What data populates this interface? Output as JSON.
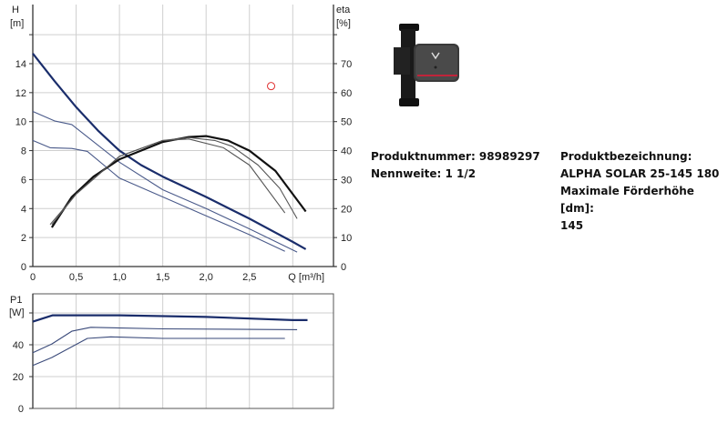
{
  "chart_data": [
    {
      "type": "line",
      "xlabel": "Q [m³/h]",
      "ylabel": "H\n[m]",
      "y2label": "eta\n[%]",
      "y_label_lines": [
        "H",
        "[m]"
      ],
      "y2_label_lines": [
        "eta",
        "[%]"
      ],
      "xlim": [
        0,
        3.47
      ],
      "ylim": [
        0,
        16
      ],
      "y2lim": [
        0,
        80
      ],
      "x_ticks": [
        0,
        0.5,
        1.0,
        1.5,
        2.0,
        2.5
      ],
      "x_tick_labels": [
        "0",
        "0,5",
        "1,0",
        "1,5",
        "2,0",
        "2,5"
      ],
      "y_ticks": [
        0,
        2,
        4,
        6,
        8,
        10,
        12,
        14
      ],
      "y2_ticks": [
        0,
        10,
        20,
        30,
        40,
        50,
        60,
        70
      ],
      "grid": true,
      "series": [
        {
          "axis": "H",
          "level": "max",
          "color": "#1a2d6b",
          "points": [
            [
              0,
              14.7
            ],
            [
              0.25,
              12.8
            ],
            [
              0.5,
              11.0
            ],
            [
              0.75,
              9.4
            ],
            [
              1.0,
              8.0
            ],
            [
              1.25,
              7.0
            ],
            [
              1.5,
              6.2
            ],
            [
              2.0,
              4.8
            ],
            [
              2.5,
              3.3
            ],
            [
              3.0,
              1.7
            ],
            [
              3.15,
              1.2
            ]
          ]
        },
        {
          "axis": "H",
          "level": "mid",
          "color": "#4a5a8a",
          "points": [
            [
              0,
              10.7
            ],
            [
              0.25,
              10.05
            ],
            [
              0.45,
              9.8
            ],
            [
              1.0,
              7.2
            ],
            [
              1.5,
              5.3
            ],
            [
              2.0,
              4.0
            ],
            [
              2.5,
              2.6
            ],
            [
              3.05,
              1.0
            ]
          ]
        },
        {
          "axis": "H",
          "level": "min",
          "color": "#4a5a8a",
          "points": [
            [
              0,
              8.7
            ],
            [
              0.2,
              8.2
            ],
            [
              0.45,
              8.15
            ],
            [
              0.63,
              7.95
            ],
            [
              1.0,
              6.1
            ],
            [
              1.5,
              4.8
            ],
            [
              2.0,
              3.5
            ],
            [
              2.5,
              2.2
            ],
            [
              2.91,
              1.05
            ]
          ]
        },
        {
          "axis": "eta",
          "level": "max",
          "color": "#111111",
          "points": [
            [
              0.22,
              13.5
            ],
            [
              0.45,
              24
            ],
            [
              0.7,
              31
            ],
            [
              1.0,
              37
            ],
            [
              1.5,
              43
            ],
            [
              1.8,
              44.7
            ],
            [
              2.0,
              45
            ],
            [
              2.25,
              43.5
            ],
            [
              2.5,
              40
            ],
            [
              2.8,
              33
            ],
            [
              3.15,
              19
            ]
          ]
        },
        {
          "axis": "eta",
          "level": "mid",
          "color": "#555555",
          "points": [
            [
              0.22,
              14.5
            ],
            [
              0.5,
              25
            ],
            [
              1.0,
              38
            ],
            [
              1.5,
              43.5
            ],
            [
              1.8,
              44.5
            ],
            [
              2.1,
              43.5
            ],
            [
              2.3,
              41.5
            ],
            [
              2.6,
              35
            ],
            [
              2.85,
              27
            ],
            [
              3.05,
              16.5
            ]
          ]
        },
        {
          "axis": "eta",
          "level": "min",
          "color": "#555555",
          "points": [
            [
              0.2,
              14.5
            ],
            [
              0.5,
              25
            ],
            [
              1.0,
              38
            ],
            [
              1.5,
              43.5
            ],
            [
              1.8,
              44
            ],
            [
              2.2,
              41
            ],
            [
              2.5,
              35
            ],
            [
              2.91,
              18.5
            ]
          ]
        }
      ],
      "marker": {
        "x": 2.75,
        "y": 12.45,
        "color": "#e03030"
      }
    },
    {
      "type": "line",
      "ylabel": "P1\n[W]",
      "y_label_lines": [
        "P1",
        "[W]"
      ],
      "xlim": [
        0,
        3.47
      ],
      "ylim": [
        0,
        72
      ],
      "y_ticks": [
        0,
        20,
        40
      ],
      "grid": true,
      "series": [
        {
          "level": "max",
          "color": "#1a2d6b",
          "points": [
            [
              0,
              54.5
            ],
            [
              0.23,
              58.5
            ],
            [
              1.0,
              58.5
            ],
            [
              2.0,
              57.5
            ],
            [
              3.0,
              55.5
            ],
            [
              3.17,
              55.5
            ]
          ]
        },
        {
          "level": "mid",
          "color": "#3a4a7a",
          "points": [
            [
              0,
              35
            ],
            [
              0.22,
              40.5
            ],
            [
              0.45,
              48.5
            ],
            [
              0.67,
              51
            ],
            [
              1.5,
              50
            ],
            [
              3.05,
              49.5
            ]
          ]
        },
        {
          "level": "min",
          "color": "#3a4a7a",
          "points": [
            [
              0,
              27
            ],
            [
              0.22,
              32
            ],
            [
              0.63,
              44
            ],
            [
              0.9,
              45
            ],
            [
              1.5,
              44
            ],
            [
              2.91,
              44
            ]
          ]
        }
      ]
    }
  ],
  "product": {
    "number_label": "Produktnummer: 98989297",
    "size_label": "Nennweite: 1 1/2",
    "designation_label": "Produktbezeichnung:",
    "designation_value": "ALPHA SOLAR 25-145 180",
    "max_head_label": "Maximale Förderhöhe [dm]:",
    "max_head_value": "145"
  }
}
